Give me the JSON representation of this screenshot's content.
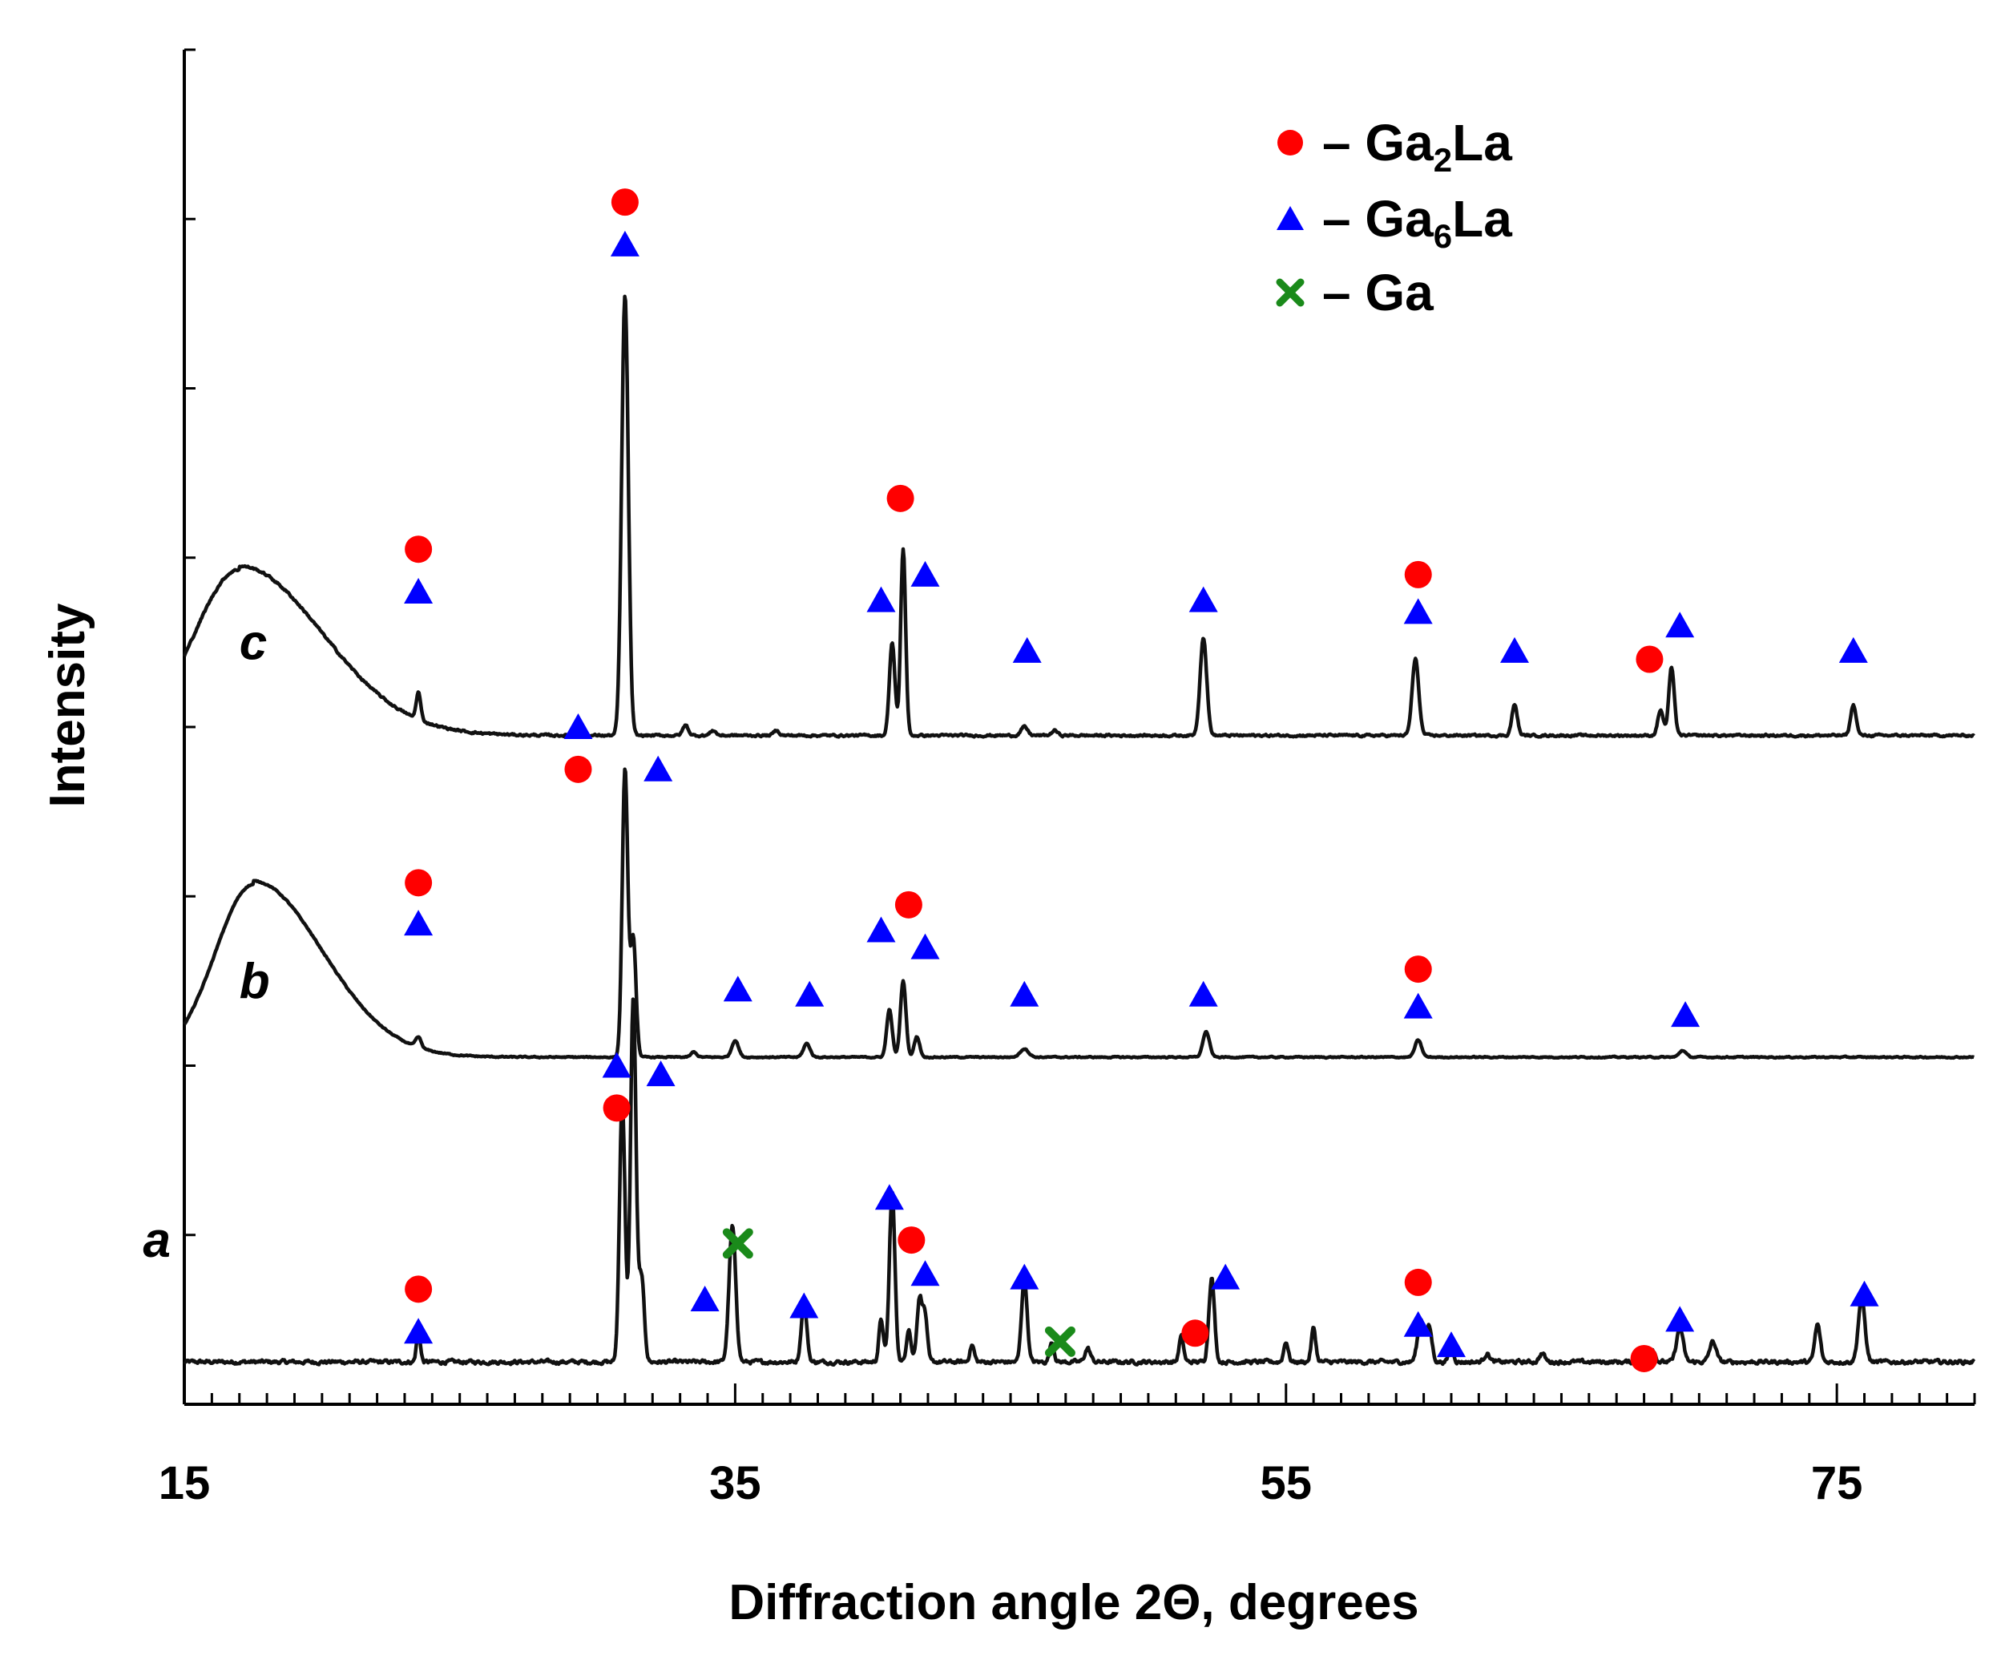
{
  "chart_data": {
    "type": "line",
    "xlabel": "Diffraction angle 2Θ, degrees",
    "ylabel": "Intensity",
    "xlim": [
      15,
      80
    ],
    "ylim": [
      0,
      8
    ],
    "x_ticks": [
      15,
      35,
      55,
      75
    ],
    "minor_tick_step": 1,
    "grid": false,
    "legend_position": "top-right",
    "legend": [
      {
        "symbol": "circle",
        "color": "#ff0000",
        "prefix": "– Ga",
        "sub": "2",
        "suffix": "La"
      },
      {
        "symbol": "triangle",
        "color": "#0000ff",
        "prefix": "– Ga",
        "sub": "6",
        "suffix": "La"
      },
      {
        "symbol": "cross",
        "color": "#1a8a1a",
        "prefix": "– Ga",
        "sub": "",
        "suffix": ""
      }
    ],
    "series": [
      {
        "name": "a",
        "baseline": 0.25,
        "hump": null,
        "noise": 0.022,
        "peaks": [
          [
            23.5,
            0.18,
            0.07
          ],
          [
            30.9,
            1.55,
            0.1
          ],
          [
            31.3,
            2.15,
            0.1
          ],
          [
            31.6,
            0.5,
            0.1
          ],
          [
            34.9,
            0.8,
            0.12
          ],
          [
            37.5,
            0.35,
            0.1
          ],
          [
            40.3,
            0.25,
            0.08
          ],
          [
            40.7,
            1.0,
            0.1
          ],
          [
            41.3,
            0.2,
            0.08
          ],
          [
            41.7,
            0.38,
            0.1
          ],
          [
            41.9,
            0.25,
            0.08
          ],
          [
            43.6,
            0.1,
            0.08
          ],
          [
            45.5,
            0.5,
            0.1
          ],
          [
            46.5,
            0.12,
            0.08
          ],
          [
            47.8,
            0.08,
            0.1
          ],
          [
            51.2,
            0.15,
            0.08
          ],
          [
            52.3,
            0.5,
            0.1
          ],
          [
            55.0,
            0.12,
            0.08
          ],
          [
            56.0,
            0.2,
            0.08
          ],
          [
            59.9,
            0.25,
            0.12
          ],
          [
            60.2,
            0.2,
            0.1
          ],
          [
            61.0,
            0.1,
            0.08
          ],
          [
            62.3,
            0.05,
            0.1
          ],
          [
            64.3,
            0.05,
            0.1
          ],
          [
            68.3,
            0.08,
            0.1
          ],
          [
            69.3,
            0.2,
            0.12
          ],
          [
            70.5,
            0.12,
            0.12
          ],
          [
            74.3,
            0.22,
            0.1
          ],
          [
            75.9,
            0.38,
            0.12
          ]
        ],
        "markers": [
          {
            "type": "circle",
            "x": 23.5,
            "y": 0.68
          },
          {
            "type": "triangle",
            "x": 23.5,
            "y": 0.43
          },
          {
            "type": "triangle",
            "x": 30.7,
            "y": 2.0
          },
          {
            "type": "circle",
            "x": 30.7,
            "y": 1.75
          },
          {
            "type": "triangle",
            "x": 32.3,
            "y": 1.95
          },
          {
            "type": "cross",
            "x": 35.1,
            "y": 0.95
          },
          {
            "type": "triangle",
            "x": 33.9,
            "y": 0.62
          },
          {
            "type": "triangle",
            "x": 37.5,
            "y": 0.58
          },
          {
            "type": "triangle",
            "x": 40.6,
            "y": 1.22
          },
          {
            "type": "circle",
            "x": 41.4,
            "y": 0.97
          },
          {
            "type": "triangle",
            "x": 41.9,
            "y": 0.77
          },
          {
            "type": "triangle",
            "x": 45.5,
            "y": 0.75
          },
          {
            "type": "cross",
            "x": 46.8,
            "y": 0.37
          },
          {
            "type": "circle",
            "x": 51.7,
            "y": 0.42
          },
          {
            "type": "triangle",
            "x": 52.8,
            "y": 0.75
          },
          {
            "type": "circle",
            "x": 59.8,
            "y": 0.72
          },
          {
            "type": "triangle",
            "x": 59.8,
            "y": 0.47
          },
          {
            "type": "triangle",
            "x": 61.0,
            "y": 0.35
          },
          {
            "type": "circle",
            "x": 68.0,
            "y": 0.27
          },
          {
            "type": "triangle",
            "x": 69.3,
            "y": 0.5
          },
          {
            "type": "triangle",
            "x": 76.0,
            "y": 0.65
          }
        ]
      },
      {
        "name": "b",
        "baseline": 2.05,
        "hump": [
          17.5,
          2.5,
          1.04
        ],
        "noise": 0.007,
        "peaks": [
          [
            23.5,
            0.06,
            0.1
          ],
          [
            31.0,
            1.7,
            0.1
          ],
          [
            31.3,
            0.7,
            0.1
          ],
          [
            33.5,
            0.03,
            0.1
          ],
          [
            35.0,
            0.1,
            0.12
          ],
          [
            37.6,
            0.08,
            0.12
          ],
          [
            40.6,
            0.28,
            0.1
          ],
          [
            41.1,
            0.45,
            0.1
          ],
          [
            41.6,
            0.12,
            0.1
          ],
          [
            45.5,
            0.05,
            0.15
          ],
          [
            52.1,
            0.15,
            0.12
          ],
          [
            59.8,
            0.1,
            0.12
          ],
          [
            69.4,
            0.04,
            0.12
          ]
        ],
        "markers": [
          {
            "type": "triangle",
            "x": 29.3,
            "y": 4.0
          },
          {
            "type": "circle",
            "x": 29.3,
            "y": 3.75
          },
          {
            "type": "triangle",
            "x": 32.2,
            "y": 3.75
          },
          {
            "type": "circle",
            "x": 23.5,
            "y": 3.08
          },
          {
            "type": "triangle",
            "x": 23.5,
            "y": 2.84
          },
          {
            "type": "circle",
            "x": 41.3,
            "y": 2.95
          },
          {
            "type": "triangle",
            "x": 40.3,
            "y": 2.8
          },
          {
            "type": "triangle",
            "x": 41.9,
            "y": 2.7
          },
          {
            "type": "triangle",
            "x": 35.1,
            "y": 2.45
          },
          {
            "type": "triangle",
            "x": 37.7,
            "y": 2.42
          },
          {
            "type": "triangle",
            "x": 45.5,
            "y": 2.42
          },
          {
            "type": "triangle",
            "x": 52.0,
            "y": 2.42
          },
          {
            "type": "circle",
            "x": 59.8,
            "y": 2.57
          },
          {
            "type": "triangle",
            "x": 59.8,
            "y": 2.35
          },
          {
            "type": "triangle",
            "x": 69.5,
            "y": 2.3
          }
        ]
      },
      {
        "name": "c",
        "baseline": 3.95,
        "hump": [
          17.0,
          3.0,
          1.0
        ],
        "noise": 0.012,
        "peaks": [
          [
            23.5,
            0.16,
            0.08
          ],
          [
            31.0,
            2.6,
            0.12
          ],
          [
            33.2,
            0.06,
            0.1
          ],
          [
            34.2,
            0.03,
            0.1
          ],
          [
            36.5,
            0.03,
            0.1
          ],
          [
            40.7,
            0.55,
            0.1
          ],
          [
            41.1,
            1.1,
            0.09
          ],
          [
            45.5,
            0.05,
            0.12
          ],
          [
            46.6,
            0.03,
            0.1
          ],
          [
            52.0,
            0.58,
            0.12
          ],
          [
            59.7,
            0.45,
            0.12
          ],
          [
            63.3,
            0.18,
            0.1
          ],
          [
            68.6,
            0.15,
            0.1
          ],
          [
            69.0,
            0.4,
            0.1
          ],
          [
            75.6,
            0.18,
            0.1
          ]
        ],
        "markers": [
          {
            "type": "circle",
            "x": 31.0,
            "y": 7.1
          },
          {
            "type": "triangle",
            "x": 31.0,
            "y": 6.85
          },
          {
            "type": "circle",
            "x": 23.5,
            "y": 5.05
          },
          {
            "type": "triangle",
            "x": 23.5,
            "y": 4.8
          },
          {
            "type": "circle",
            "x": 41.0,
            "y": 5.35
          },
          {
            "type": "triangle",
            "x": 40.3,
            "y": 4.75
          },
          {
            "type": "triangle",
            "x": 41.9,
            "y": 4.9
          },
          {
            "type": "triangle",
            "x": 45.6,
            "y": 4.45
          },
          {
            "type": "triangle",
            "x": 52.0,
            "y": 4.75
          },
          {
            "type": "circle",
            "x": 59.8,
            "y": 4.9
          },
          {
            "type": "triangle",
            "x": 59.8,
            "y": 4.68
          },
          {
            "type": "triangle",
            "x": 63.3,
            "y": 4.45
          },
          {
            "type": "circle",
            "x": 68.2,
            "y": 4.4
          },
          {
            "type": "triangle",
            "x": 69.3,
            "y": 4.6
          },
          {
            "type": "triangle",
            "x": 75.6,
            "y": 4.45
          }
        ]
      }
    ]
  }
}
